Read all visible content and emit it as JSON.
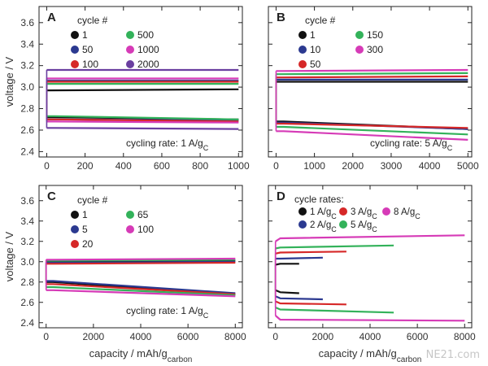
{
  "colors": {
    "black": "#111111",
    "blue": "#2b3990",
    "red": "#d62828",
    "green": "#33b25a",
    "purple": "#6a3fa0",
    "magenta": "#d63bb7"
  },
  "axis_labels": {
    "ylabel": "voltage / V",
    "xlabel": "capacity / mAh/gcarbon"
  },
  "watermark": {
    "text": "NE21.com"
  },
  "chart_data": [
    {
      "panel": "A",
      "type": "line",
      "ylabel": "voltage / V",
      "xlabel": "",
      "xlim": [
        -40,
        1020
      ],
      "ylim": [
        2.35,
        3.75
      ],
      "xticks": [
        "0",
        "200",
        "400",
        "600",
        "800",
        "1000"
      ],
      "xtick_values": [
        0,
        200,
        400,
        600,
        800,
        1000
      ],
      "yticks": [
        "2.4",
        "2.6",
        "2.8",
        "3.0",
        "3.2",
        "3.4",
        "3.6"
      ],
      "ytick_values": [
        2.4,
        2.6,
        2.8,
        3.0,
        3.2,
        3.4,
        3.6
      ],
      "legend_title": "cycle #",
      "annotation": "cycling rate: 1 A/g",
      "annotation_sub": "C",
      "series": [
        {
          "name": "1",
          "color": "#111111",
          "charge": [
            [
              0,
              2.97
            ],
            [
              20,
              2.97
            ],
            [
              1000,
              2.98
            ]
          ],
          "discharge": [
            [
              0,
              2.72
            ],
            [
              40,
              2.72
            ],
            [
              1000,
              2.7
            ]
          ]
        },
        {
          "name": "50",
          "color": "#2b3990",
          "charge": [
            [
              0,
              3.06
            ],
            [
              20,
              3.06
            ],
            [
              1000,
              3.06
            ]
          ],
          "discharge": [
            [
              0,
              2.7
            ],
            [
              40,
              2.7
            ],
            [
              1000,
              2.69
            ]
          ]
        },
        {
          "name": "100",
          "color": "#d62828",
          "charge": [
            [
              0,
              3.05
            ],
            [
              20,
              3.05
            ],
            [
              1000,
              3.05
            ]
          ],
          "discharge": [
            [
              0,
              2.7
            ],
            [
              40,
              2.7
            ],
            [
              1000,
              2.68
            ]
          ]
        },
        {
          "name": "500",
          "color": "#33b25a",
          "charge": [
            [
              0,
              3.03
            ],
            [
              20,
              3.03
            ],
            [
              1000,
              3.03
            ]
          ],
          "discharge": [
            [
              0,
              2.73
            ],
            [
              40,
              2.73
            ],
            [
              1000,
              2.7
            ]
          ]
        },
        {
          "name": "1000",
          "color": "#d63bb7",
          "charge": [
            [
              0,
              3.08
            ],
            [
              20,
              3.08
            ],
            [
              1000,
              3.08
            ]
          ],
          "discharge": [
            [
              0,
              2.68
            ],
            [
              40,
              2.68
            ],
            [
              1000,
              2.67
            ]
          ]
        },
        {
          "name": "2000",
          "color": "#6a3fa0",
          "charge": [
            [
              0,
              3.16
            ],
            [
              20,
              3.16
            ],
            [
              1000,
              3.16
            ]
          ],
          "discharge": [
            [
              0,
              2.62
            ],
            [
              40,
              2.62
            ],
            [
              1000,
              2.61
            ]
          ]
        }
      ]
    },
    {
      "panel": "B",
      "type": "line",
      "ylabel": "",
      "xlabel": "",
      "xlim": [
        -200,
        5100
      ],
      "ylim": [
        2.35,
        3.75
      ],
      "xticks": [
        "0",
        "1000",
        "2000",
        "3000",
        "4000",
        "5000"
      ],
      "xtick_values": [
        0,
        1000,
        2000,
        3000,
        4000,
        5000
      ],
      "yticks": [],
      "ytick_values": [
        2.4,
        2.6,
        2.8,
        3.0,
        3.2,
        3.4,
        3.6
      ],
      "legend_title": "cycle #",
      "annotation": "cycling rate: 5 A/g",
      "annotation_sub": "C",
      "series": [
        {
          "name": "1",
          "color": "#111111",
          "charge": [
            [
              0,
              3.05
            ],
            [
              150,
              3.05
            ],
            [
              5000,
              3.05
            ]
          ],
          "discharge": [
            [
              0,
              2.68
            ],
            [
              200,
              2.68
            ],
            [
              5000,
              2.61
            ]
          ]
        },
        {
          "name": "10",
          "color": "#2b3990",
          "charge": [
            [
              0,
              3.07
            ],
            [
              150,
              3.07
            ],
            [
              5000,
              3.07
            ]
          ],
          "discharge": [
            [
              0,
              2.67
            ],
            [
              200,
              2.67
            ],
            [
              5000,
              2.61
            ]
          ]
        },
        {
          "name": "50",
          "color": "#d62828",
          "charge": [
            [
              0,
              3.09
            ],
            [
              150,
              3.09
            ],
            [
              5000,
              3.1
            ]
          ],
          "discharge": [
            [
              0,
              2.66
            ],
            [
              200,
              2.66
            ],
            [
              5000,
              2.62
            ]
          ]
        },
        {
          "name": "150",
          "color": "#33b25a",
          "charge": [
            [
              0,
              3.12
            ],
            [
              150,
              3.12
            ],
            [
              5000,
              3.13
            ]
          ],
          "discharge": [
            [
              0,
              2.63
            ],
            [
              200,
              2.63
            ],
            [
              5000,
              2.56
            ]
          ]
        },
        {
          "name": "300",
          "color": "#d63bb7",
          "charge": [
            [
              0,
              3.15
            ],
            [
              150,
              3.15
            ],
            [
              5000,
              3.16
            ]
          ],
          "discharge": [
            [
              0,
              2.59
            ],
            [
              200,
              2.59
            ],
            [
              5000,
              2.51
            ]
          ]
        }
      ]
    },
    {
      "panel": "C",
      "type": "line",
      "ylabel": "voltage / V",
      "xlabel": "capacity / mAh/gcarbon",
      "xlim": [
        -300,
        8300
      ],
      "ylim": [
        2.35,
        3.75
      ],
      "xticks": [
        "0",
        "2000",
        "4000",
        "6000",
        "8000"
      ],
      "xtick_values": [
        0,
        2000,
        4000,
        6000,
        8000
      ],
      "yticks": [
        "2.4",
        "2.6",
        "2.8",
        "3.0",
        "3.2",
        "3.4",
        "3.6"
      ],
      "ytick_values": [
        2.4,
        2.6,
        2.8,
        3.0,
        3.2,
        3.4,
        3.6
      ],
      "legend_title": "cycle #",
      "annotation": "cycling rate: 1 A/g",
      "annotation_sub": "C",
      "series": [
        {
          "name": "1",
          "color": "#111111",
          "charge": [
            [
              0,
              3.0
            ],
            [
              300,
              3.0
            ],
            [
              8000,
              3.01
            ]
          ],
          "discharge": [
            [
              0,
              2.8
            ],
            [
              300,
              2.8
            ],
            [
              8000,
              2.68
            ]
          ]
        },
        {
          "name": "5",
          "color": "#2b3990",
          "charge": [
            [
              0,
              2.99
            ],
            [
              300,
              2.99
            ],
            [
              8000,
              3.0
            ]
          ],
          "discharge": [
            [
              0,
              2.81
            ],
            [
              300,
              2.81
            ],
            [
              8000,
              2.69
            ]
          ]
        },
        {
          "name": "20",
          "color": "#d62828",
          "charge": [
            [
              0,
              2.98
            ],
            [
              300,
              2.98
            ],
            [
              8000,
              2.99
            ]
          ],
          "discharge": [
            [
              0,
              2.78
            ],
            [
              300,
              2.78
            ],
            [
              8000,
              2.68
            ]
          ]
        },
        {
          "name": "65",
          "color": "#33b25a",
          "charge": [
            [
              0,
              3.01
            ],
            [
              300,
              3.01
            ],
            [
              8000,
              3.02
            ]
          ],
          "discharge": [
            [
              0,
              2.75
            ],
            [
              300,
              2.75
            ],
            [
              8000,
              2.67
            ]
          ]
        },
        {
          "name": "100",
          "color": "#d63bb7",
          "charge": [
            [
              0,
              3.02
            ],
            [
              300,
              3.02
            ],
            [
              8000,
              3.03
            ]
          ],
          "discharge": [
            [
              0,
              2.72
            ],
            [
              300,
              2.72
            ],
            [
              8000,
              2.66
            ]
          ]
        }
      ]
    },
    {
      "panel": "D",
      "type": "line",
      "ylabel": "",
      "xlabel": "capacity / mAh/gcarbon",
      "xlim": [
        -300,
        8300
      ],
      "ylim": [
        2.35,
        3.75
      ],
      "xticks": [
        "0",
        "2000",
        "4000",
        "6000",
        "8000"
      ],
      "xtick_values": [
        0,
        2000,
        4000,
        6000,
        8000
      ],
      "yticks": [],
      "ytick_values": [
        2.4,
        2.6,
        2.8,
        3.0,
        3.2,
        3.4,
        3.6
      ],
      "legend_title": "cycle rates:",
      "annotation": "",
      "annotation_sub": "",
      "series": [
        {
          "name": "1 A/gC",
          "color": "#111111",
          "charge": [
            [
              0,
              2.97
            ],
            [
              200,
              2.98
            ],
            [
              1000,
              2.98
            ]
          ],
          "discharge": [
            [
              0,
              2.72
            ],
            [
              200,
              2.7
            ],
            [
              1000,
              2.69
            ]
          ]
        },
        {
          "name": "2 A/gC",
          "color": "#2b3990",
          "charge": [
            [
              0,
              3.03
            ],
            [
              200,
              3.03
            ],
            [
              2000,
              3.04
            ]
          ],
          "discharge": [
            [
              0,
              2.66
            ],
            [
              200,
              2.64
            ],
            [
              2000,
              2.63
            ]
          ]
        },
        {
          "name": "3 A/gC",
          "color": "#d62828",
          "charge": [
            [
              0,
              3.08
            ],
            [
              200,
              3.09
            ],
            [
              3000,
              3.1
            ]
          ],
          "discharge": [
            [
              0,
              2.61
            ],
            [
              200,
              2.59
            ],
            [
              3000,
              2.58
            ]
          ]
        },
        {
          "name": "5 A/gC",
          "color": "#33b25a",
          "charge": [
            [
              0,
              3.13
            ],
            [
              200,
              3.14
            ],
            [
              5000,
              3.16
            ]
          ],
          "discharge": [
            [
              0,
              2.55
            ],
            [
              200,
              2.53
            ],
            [
              5000,
              2.5
            ]
          ]
        },
        {
          "name": "8 A/gC",
          "color": "#d63bb7",
          "charge": [
            [
              0,
              3.2
            ],
            [
              200,
              3.23
            ],
            [
              8000,
              3.26
            ]
          ],
          "discharge": [
            [
              0,
              2.47
            ],
            [
              200,
              2.43
            ],
            [
              8000,
              2.42
            ]
          ]
        }
      ]
    }
  ]
}
